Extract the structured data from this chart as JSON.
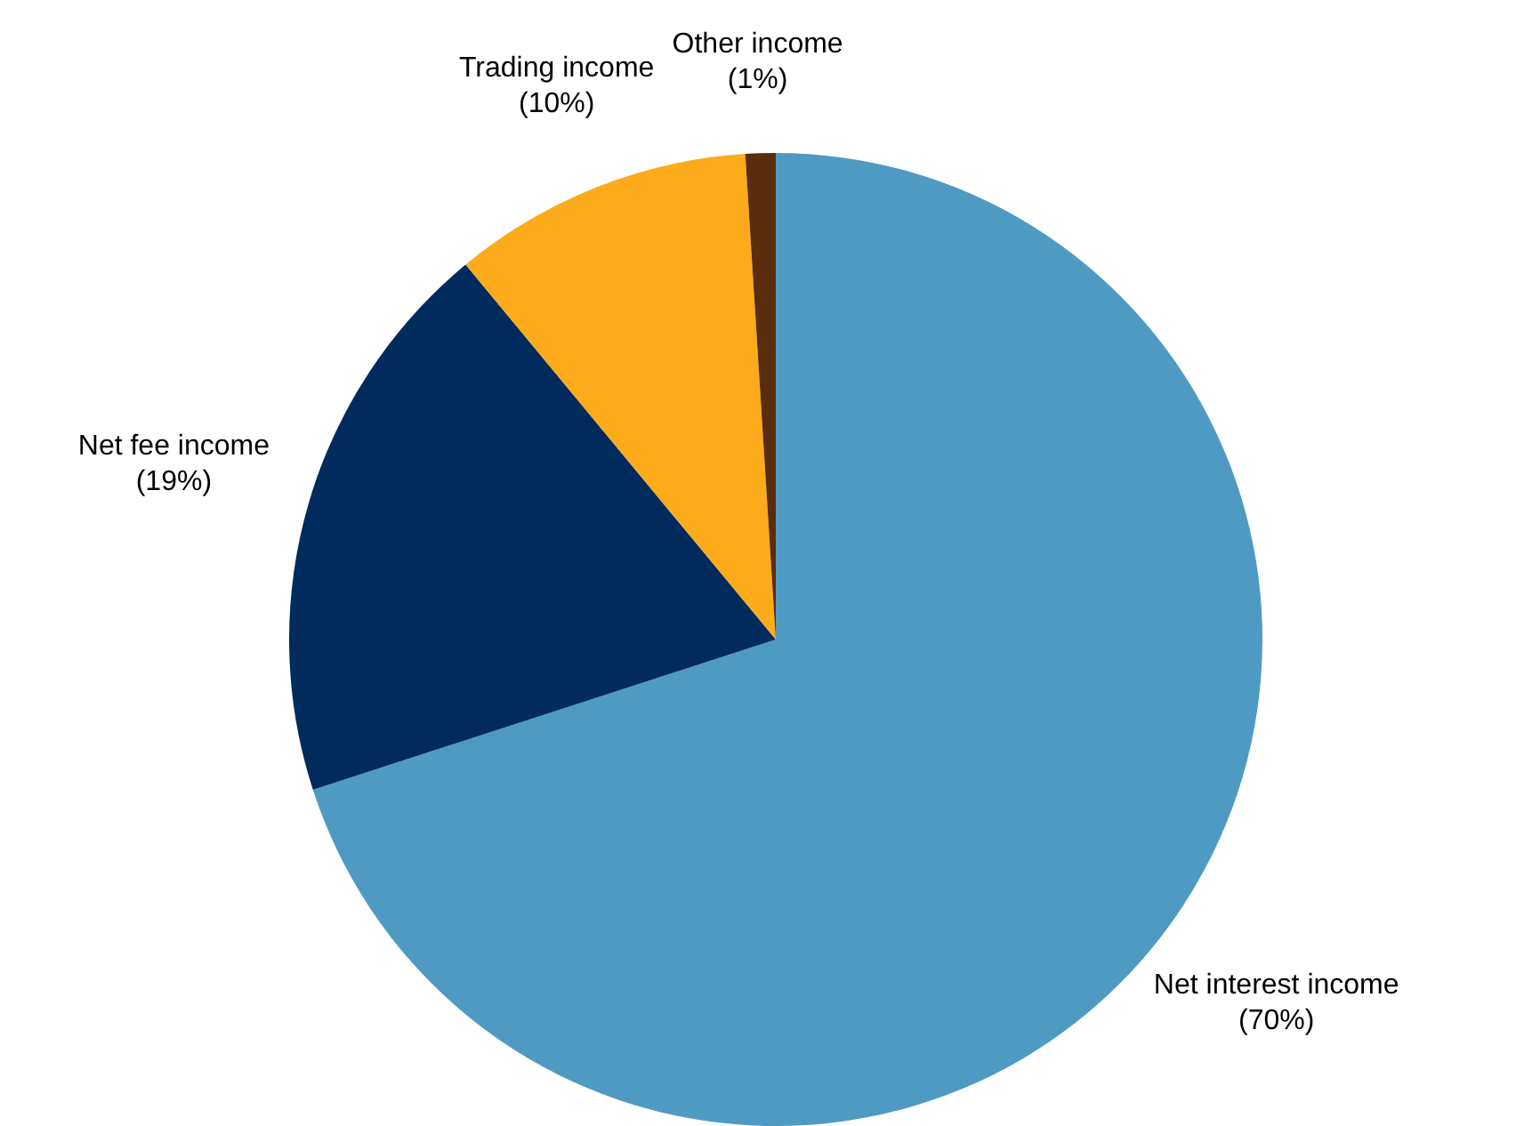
{
  "chart_data": {
    "type": "pie",
    "categories": [
      "Net interest income",
      "Net fee income",
      "Trading income",
      "Other income"
    ],
    "values": [
      70,
      19,
      10,
      1
    ],
    "value_labels": [
      "(70%)",
      "(19%)",
      "(10%)",
      "(1%)"
    ],
    "colors": [
      "#4f9ac2",
      "#002b5c",
      "#fdaa1b",
      "#5a2d0c"
    ],
    "legend": false
  }
}
